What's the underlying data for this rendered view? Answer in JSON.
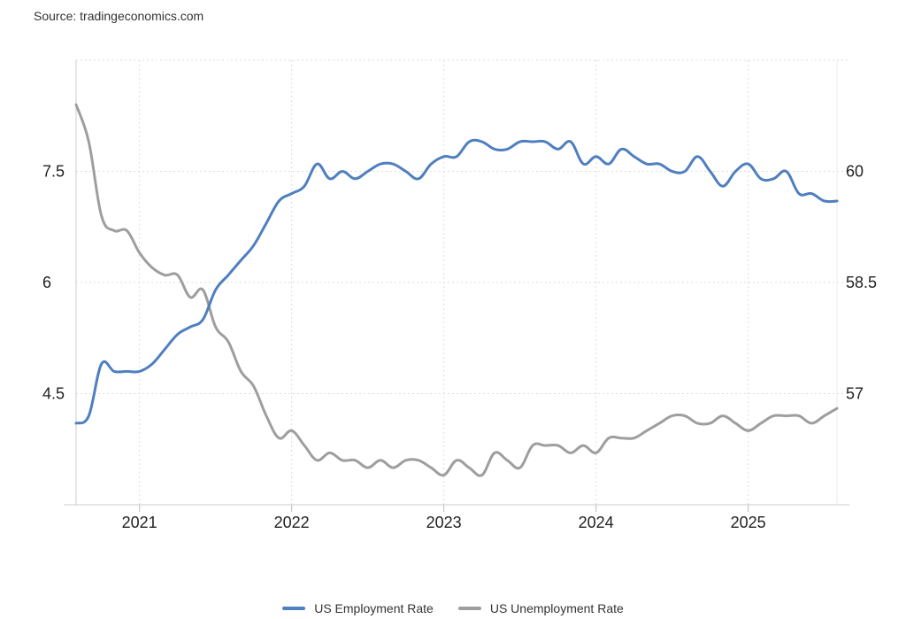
{
  "source": "Source: tradingeconomics.com",
  "chart_data": {
    "type": "line",
    "title": "",
    "xlabel": "",
    "x_ticks": [
      "2021",
      "2022",
      "2023",
      "2024",
      "2025"
    ],
    "xlim": [
      "2020-08",
      "2025-08"
    ],
    "left_axis": {
      "ticks": [
        "7.5",
        "6",
        "4.5"
      ],
      "ylim": [
        3.0,
        9.0
      ]
    },
    "right_axis": {
      "ticks": [
        "60",
        "58.5",
        "57"
      ],
      "ylim": [
        55.5,
        61.5
      ]
    },
    "grid": true,
    "legend_position": "bottom",
    "series": [
      {
        "name": "US Employment Rate",
        "axis": "right",
        "color": "#4f7fbf",
        "x": [
          "2020-08",
          "2020-09",
          "2020-10",
          "2020-11",
          "2020-12",
          "2021-01",
          "2021-02",
          "2021-03",
          "2021-04",
          "2021-05",
          "2021-06",
          "2021-07",
          "2021-08",
          "2021-09",
          "2021-10",
          "2021-11",
          "2021-12",
          "2022-01",
          "2022-02",
          "2022-03",
          "2022-04",
          "2022-05",
          "2022-06",
          "2022-07",
          "2022-08",
          "2022-09",
          "2022-10",
          "2022-11",
          "2022-12",
          "2023-01",
          "2023-02",
          "2023-03",
          "2023-04",
          "2023-05",
          "2023-06",
          "2023-07",
          "2023-08",
          "2023-09",
          "2023-10",
          "2023-11",
          "2023-12",
          "2024-01",
          "2024-02",
          "2024-03",
          "2024-04",
          "2024-05",
          "2024-06",
          "2024-07",
          "2024-08",
          "2024-09",
          "2024-10",
          "2024-11",
          "2024-12",
          "2025-01",
          "2025-02",
          "2025-03",
          "2025-04",
          "2025-05",
          "2025-06",
          "2025-07",
          "2025-08"
        ],
        "values": [
          56.6,
          56.7,
          57.4,
          57.3,
          57.3,
          57.3,
          57.4,
          57.6,
          57.8,
          57.9,
          58.0,
          58.4,
          58.6,
          58.8,
          59.0,
          59.3,
          59.6,
          59.7,
          59.8,
          60.1,
          59.9,
          60.0,
          59.9,
          60.0,
          60.1,
          60.1,
          60.0,
          59.9,
          60.1,
          60.2,
          60.2,
          60.4,
          60.4,
          60.3,
          60.3,
          60.4,
          60.4,
          60.4,
          60.3,
          60.4,
          60.1,
          60.2,
          60.1,
          60.3,
          60.2,
          60.1,
          60.1,
          60.0,
          60.0,
          60.2,
          60.0,
          59.8,
          60.0,
          60.1,
          59.9,
          59.9,
          60.0,
          59.7,
          59.7,
          59.6,
          59.6
        ]
      },
      {
        "name": "US Unemployment Rate",
        "axis": "left",
        "color": "#9e9e9e",
        "x": [
          "2020-08",
          "2020-09",
          "2020-10",
          "2020-11",
          "2020-12",
          "2021-01",
          "2021-02",
          "2021-03",
          "2021-04",
          "2021-05",
          "2021-06",
          "2021-07",
          "2021-08",
          "2021-09",
          "2021-10",
          "2021-11",
          "2021-12",
          "2022-01",
          "2022-02",
          "2022-03",
          "2022-04",
          "2022-05",
          "2022-06",
          "2022-07",
          "2022-08",
          "2022-09",
          "2022-10",
          "2022-11",
          "2022-12",
          "2023-01",
          "2023-02",
          "2023-03",
          "2023-04",
          "2023-05",
          "2023-06",
          "2023-07",
          "2023-08",
          "2023-09",
          "2023-10",
          "2023-11",
          "2023-12",
          "2024-01",
          "2024-02",
          "2024-03",
          "2024-04",
          "2024-05",
          "2024-06",
          "2024-07",
          "2024-08",
          "2024-09",
          "2024-10",
          "2024-11",
          "2024-12",
          "2025-01",
          "2025-02",
          "2025-03",
          "2025-04",
          "2025-05",
          "2025-06",
          "2025-07",
          "2025-08"
        ],
        "values": [
          8.4,
          7.9,
          6.9,
          6.7,
          6.7,
          6.4,
          6.2,
          6.1,
          6.1,
          5.8,
          5.9,
          5.4,
          5.2,
          4.8,
          4.6,
          4.2,
          3.9,
          4.0,
          3.8,
          3.6,
          3.7,
          3.6,
          3.6,
          3.5,
          3.6,
          3.5,
          3.6,
          3.6,
          3.5,
          3.4,
          3.6,
          3.5,
          3.4,
          3.7,
          3.6,
          3.5,
          3.8,
          3.8,
          3.8,
          3.7,
          3.8,
          3.7,
          3.9,
          3.9,
          3.9,
          4.0,
          4.1,
          4.2,
          4.2,
          4.1,
          4.1,
          4.2,
          4.1,
          4.0,
          4.1,
          4.2,
          4.2,
          4.2,
          4.1,
          4.2,
          4.3
        ]
      }
    ]
  }
}
